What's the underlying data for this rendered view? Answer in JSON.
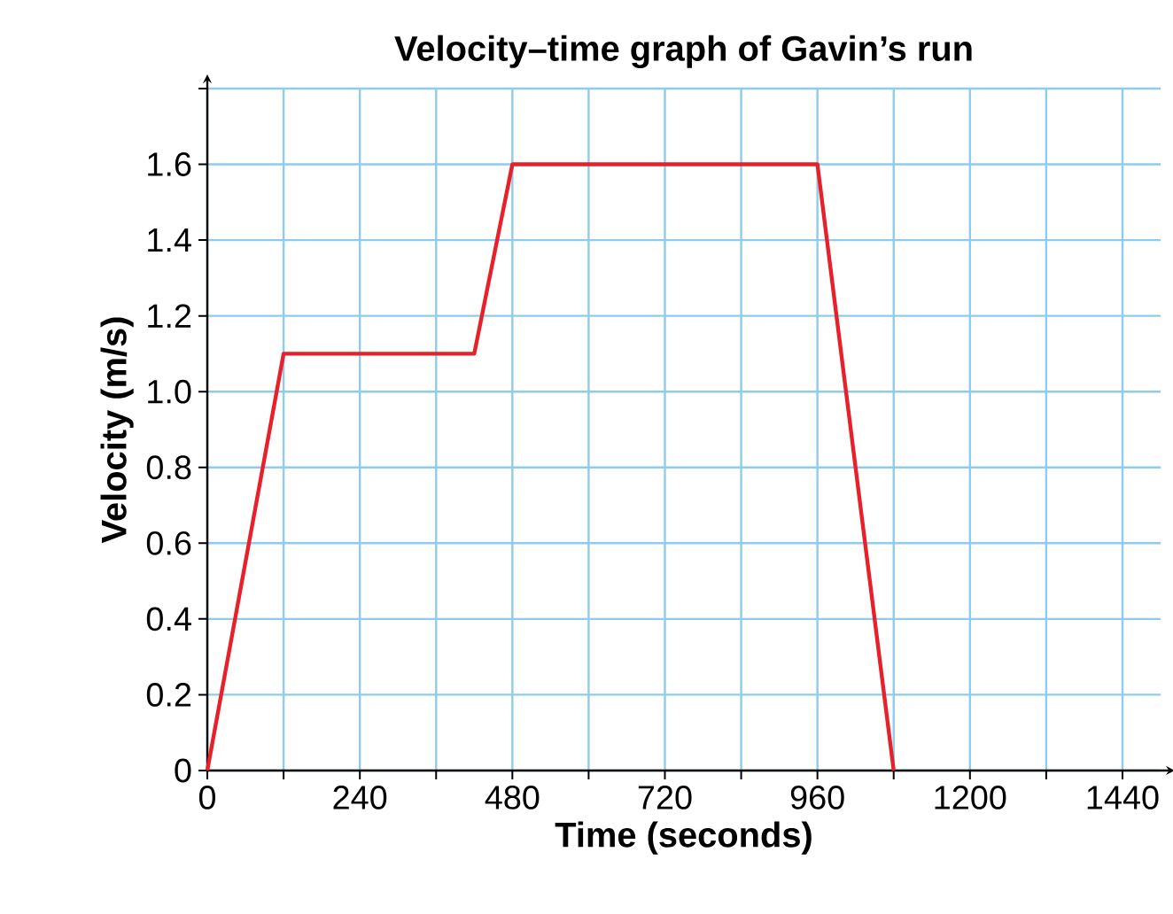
{
  "chart_data": {
    "type": "line",
    "title": "Velocity–time graph of Gavin’s run",
    "xlabel": "Time (seconds)",
    "ylabel": "Velocity (m/s)",
    "x": [
      0,
      120,
      420,
      480,
      960,
      1080
    ],
    "values": [
      0,
      1.1,
      1.1,
      1.6,
      1.6,
      0
    ],
    "color": "#e8202a",
    "xlim": [
      0,
      1500
    ],
    "ylim": [
      0,
      1.8
    ],
    "xticks": [
      0,
      {
        "value": 120,
        "label": null
      },
      240,
      {
        "value": 360,
        "label": null
      },
      480,
      {
        "value": 600,
        "label": null
      },
      720,
      {
        "value": 840,
        "label": null
      },
      960,
      {
        "value": 1080,
        "label": null
      },
      1200,
      {
        "value": 1320,
        "label": null
      },
      1440
    ],
    "yticks": [
      0,
      0.2,
      0.4,
      0.6,
      0.8,
      {
        "value": 1,
        "label": "1.0"
      },
      1.2,
      1.4,
      1.6,
      {
        "value": 1.8,
        "label": null
      }
    ],
    "grid": true
  }
}
